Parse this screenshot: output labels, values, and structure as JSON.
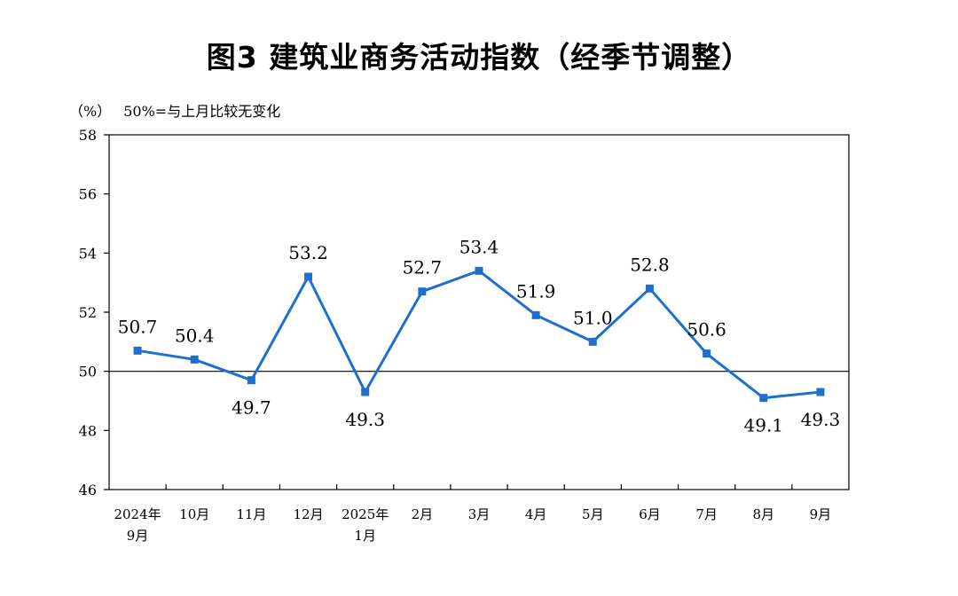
{
  "chart_data": {
    "type": "line",
    "title": "图3  建筑业商务活动指数（经季节调整）",
    "unit": "（%）",
    "note": "50%=与上月比较无变化",
    "categories": [
      [
        "2024年",
        "9月"
      ],
      [
        "10月"
      ],
      [
        "11月"
      ],
      [
        "12月"
      ],
      [
        "2025年",
        "1月"
      ],
      [
        "2月"
      ],
      [
        "3月"
      ],
      [
        "4月"
      ],
      [
        "5月"
      ],
      [
        "6月"
      ],
      [
        "7月"
      ],
      [
        "8月"
      ],
      [
        "9月"
      ]
    ],
    "series": [
      {
        "values": [
          50.7,
          50.4,
          49.7,
          53.2,
          49.3,
          52.7,
          53.4,
          51.9,
          51.0,
          52.8,
          50.6,
          49.1,
          49.3
        ],
        "labels": [
          "50.7",
          "50.4",
          "49.7",
          "53.2",
          "49.3",
          "52.7",
          "53.4",
          "51.9",
          "51.0",
          "52.8",
          "50.6",
          "49.1",
          "49.3"
        ],
        "color": "#1f6fcc"
      }
    ],
    "ylim": [
      46,
      58
    ],
    "yticks": [
      "46",
      "48",
      "50",
      "52",
      "54",
      "56",
      "58"
    ],
    "reference_line": 50,
    "grid": false,
    "legend": "none"
  }
}
